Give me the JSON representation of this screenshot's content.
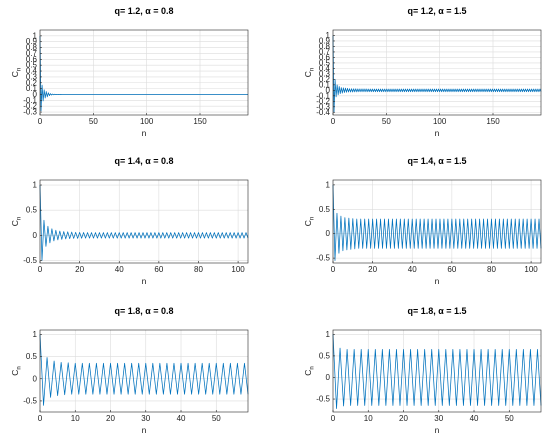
{
  "line_color": "#0072BD",
  "chart_data": [
    {
      "type": "line",
      "title": "q= 1.2, α = 0.8",
      "xlabel": "n",
      "ylabel": "C",
      "ylabel_sub": "n",
      "xlim": [
        0,
        195
      ],
      "ylim": [
        -0.35,
        1.1
      ],
      "xticks": [
        0,
        50,
        100,
        150
      ],
      "xtick_labels": [
        "0",
        "50",
        "100",
        "150"
      ],
      "yticks": [
        -0.3,
        -0.2,
        -0.1,
        0,
        0.1,
        0.2,
        0.3,
        0.4,
        0.5,
        0.6,
        0.7,
        0.8,
        0.9,
        1
      ],
      "ytick_labels": [
        "-0.3",
        "-0.2",
        "-0.1",
        "0",
        "0.1",
        "0.2",
        "0.3",
        "0.4",
        "0.5",
        "0.6",
        "0.7",
        "0.8",
        "0.9",
        "1"
      ],
      "grid": true,
      "series": [
        {
          "x_start": 0,
          "x_end": 195,
          "values": [
            1,
            -0.28,
            0.16,
            -0.11,
            0.08,
            -0.06,
            0.05,
            -0.04,
            0.03,
            -0.02,
            0.015,
            -0.01,
            0.008,
            -0.005,
            0.004,
            -0.003,
            0.002,
            -0.001,
            0.001,
            -0.001,
            0.001,
            -0.001,
            0,
            0,
            0,
            0,
            0,
            0,
            0,
            0,
            0,
            0,
            0,
            0,
            0,
            0,
            0,
            0,
            0,
            0,
            0,
            0,
            0,
            0,
            0,
            0,
            0,
            0,
            0,
            0,
            0,
            0,
            0,
            0,
            0,
            0,
            0,
            0,
            0,
            0,
            0,
            0,
            0,
            0,
            0,
            0,
            0,
            0,
            0,
            0,
            0,
            0,
            0,
            0,
            0,
            0,
            0,
            0,
            0,
            0,
            0,
            0,
            0,
            0,
            0,
            0,
            0,
            0,
            0,
            0,
            0,
            0,
            0,
            0,
            0,
            0,
            0,
            0,
            0,
            0,
            0,
            0,
            0,
            0,
            0,
            0,
            0,
            0,
            0,
            0,
            0,
            0,
            0,
            0,
            0,
            0,
            0,
            0,
            0,
            0,
            0,
            0,
            0,
            0,
            0,
            0,
            0,
            0,
            0,
            0,
            0,
            0,
            0,
            0,
            0,
            0,
            0,
            0,
            0,
            0,
            0,
            0,
            0,
            0,
            0,
            0,
            0,
            0,
            0,
            0,
            0,
            0,
            0,
            0,
            0,
            0,
            0,
            0,
            0,
            0,
            0,
            0,
            0,
            0,
            0,
            0,
            0,
            0,
            0,
            0,
            0,
            0,
            0,
            0,
            0,
            0,
            0,
            0,
            0,
            0,
            0,
            0,
            0,
            0,
            0,
            0,
            0,
            0,
            0,
            0,
            0,
            0,
            0,
            0,
            0,
            0,
            0,
            0,
            0,
            0,
            0
          ]
        }
      ]
    },
    {
      "type": "line",
      "title": "q= 1.2, α = 1.5",
      "xlabel": "n",
      "ylabel": "C",
      "ylabel_sub": "n",
      "xlim": [
        0,
        195
      ],
      "ylim": [
        -0.45,
        1.1
      ],
      "xticks": [
        0,
        50,
        100,
        150
      ],
      "xtick_labels": [
        "0",
        "50",
        "100",
        "150"
      ],
      "yticks": [
        -0.4,
        -0.3,
        -0.2,
        -0.1,
        0,
        0.1,
        0.2,
        0.3,
        0.4,
        0.5,
        0.6,
        0.7,
        0.8,
        0.9,
        1
      ],
      "ytick_labels": [
        "-0.4",
        "-0.3",
        "-0.2",
        "-0.1",
        "0",
        "0.1",
        "0.2",
        "0.3",
        "0.4",
        "0.5",
        "0.6",
        "0.7",
        "0.8",
        "0.9",
        "1"
      ],
      "grid": true,
      "series": [
        {
          "x_start": 0,
          "x_end": 195,
          "values": [
            1,
            -0.4,
            0.2,
            -0.12,
            0.1,
            -0.08,
            0.07,
            -0.06,
            0.05,
            -0.05,
            0.045,
            -0.04,
            0.04,
            -0.035,
            0.035,
            -0.03,
            0.03,
            -0.03,
            0.03,
            -0.03,
            0.028,
            -0.028,
            0.028,
            -0.028,
            0.027,
            -0.027,
            0.027,
            -0.027,
            0.026,
            -0.026,
            0.026,
            -0.026,
            0.026,
            -0.026,
            0.025,
            -0.025,
            0.025,
            -0.025,
            0.025,
            -0.025,
            0.025,
            -0.025,
            0.025,
            -0.025,
            0.025,
            -0.025,
            0.025,
            -0.025,
            0.025,
            -0.025,
            0.025,
            -0.025,
            0.025,
            -0.025,
            0.025,
            -0.025,
            0.025,
            -0.025,
            0.025,
            -0.025,
            0.025,
            -0.025,
            0.025,
            -0.025,
            0.025,
            -0.025,
            0.025,
            -0.025,
            0.025,
            -0.025,
            0.025,
            -0.025,
            0.025,
            -0.025,
            0.025,
            -0.025,
            0.025,
            -0.025,
            0.025,
            -0.025,
            0.025,
            -0.025,
            0.025,
            -0.025,
            0.025,
            -0.025,
            0.025,
            -0.025,
            0.025,
            -0.025,
            0.025,
            -0.025,
            0.025,
            -0.025,
            0.025,
            -0.025,
            0.025,
            -0.025,
            0.025,
            -0.025,
            0.025,
            -0.025,
            0.025,
            -0.025,
            0.025,
            -0.025,
            0.025,
            -0.025,
            0.025,
            -0.025,
            0.025,
            -0.025,
            0.025,
            -0.025,
            0.025,
            -0.025,
            0.025,
            -0.025,
            0.025,
            -0.025,
            0.025,
            -0.025,
            0.025,
            -0.025,
            0.025,
            -0.025,
            0.025,
            -0.025,
            0.025,
            -0.025,
            0.025,
            -0.025,
            0.025,
            -0.025,
            0.025,
            -0.025,
            0.025,
            -0.025,
            0.025,
            -0.025,
            0.025,
            -0.025,
            0.025,
            -0.025,
            0.025,
            -0.025,
            0.025,
            -0.025,
            0.025,
            -0.025,
            0.025,
            -0.025,
            0.025,
            -0.025,
            0.025,
            -0.025,
            0.025,
            -0.025,
            0.025,
            -0.025,
            0.025,
            -0.025,
            0.025,
            -0.025,
            0.025,
            -0.025,
            0.025,
            -0.025,
            0.025,
            -0.025,
            0.025,
            -0.025,
            0.025,
            -0.025,
            0.025,
            -0.025,
            0.025,
            -0.025,
            0.025,
            -0.025,
            0.025,
            -0.025,
            0.025,
            -0.025,
            0.025,
            -0.025,
            0.025,
            -0.025,
            0.025,
            -0.025,
            0.025,
            -0.025,
            0.025,
            -0.025,
            0.025,
            -0.025,
            0.025,
            -0.025,
            0.025,
            -0.025,
            0.025,
            -0.025
          ]
        }
      ]
    },
    {
      "type": "line",
      "title": "q= 1.4, α = 0.8",
      "xlabel": "n",
      "ylabel": "C",
      "ylabel_sub": "n",
      "xlim": [
        0,
        105
      ],
      "ylim": [
        -0.55,
        1.1
      ],
      "xticks": [
        0,
        20,
        40,
        60,
        80,
        100
      ],
      "xtick_labels": [
        "0",
        "20",
        "40",
        "60",
        "80",
        "100"
      ],
      "yticks": [
        -0.5,
        0,
        0.5,
        1
      ],
      "ytick_labels": [
        "-0.5",
        "0",
        "0.5",
        "1"
      ],
      "grid": true,
      "series": [
        {
          "x_start": 0,
          "x_end": 105,
          "values": [
            1,
            -0.5,
            0.3,
            -0.22,
            0.18,
            -0.15,
            0.13,
            -0.11,
            0.1,
            -0.09,
            0.085,
            -0.08,
            0.075,
            -0.07,
            0.07,
            -0.065,
            0.065,
            -0.06,
            0.06,
            -0.06,
            0.058,
            -0.058,
            0.056,
            -0.056,
            0.055,
            -0.055,
            0.055,
            -0.055,
            0.055,
            -0.055,
            0.055,
            -0.055,
            0.055,
            -0.055,
            0.055,
            -0.055,
            0.055,
            -0.055,
            0.055,
            -0.055,
            0.055,
            -0.055,
            0.055,
            -0.055,
            0.055,
            -0.055,
            0.055,
            -0.055,
            0.055,
            -0.055,
            0.055,
            -0.055,
            0.055,
            -0.055,
            0.055,
            -0.055,
            0.055,
            -0.055,
            0.055,
            -0.055,
            0.055,
            -0.055,
            0.055,
            -0.055,
            0.055,
            -0.055,
            0.055,
            -0.055,
            0.055,
            -0.055,
            0.055,
            -0.055,
            0.055,
            -0.055,
            0.055,
            -0.055,
            0.055,
            -0.055,
            0.055,
            -0.055,
            0.055,
            -0.055,
            0.055,
            -0.055,
            0.055,
            -0.055,
            0.055,
            -0.055,
            0.055,
            -0.055,
            0.055,
            -0.055,
            0.055,
            -0.055,
            0.055,
            -0.055,
            0.055,
            -0.055,
            0.055,
            -0.055,
            0.055,
            -0.055,
            0.055,
            -0.055,
            0.055,
            -0.055
          ]
        }
      ]
    },
    {
      "type": "line",
      "title": "q= 1.4, α = 1.5",
      "xlabel": "n",
      "ylabel": "C",
      "ylabel_sub": "n",
      "xlim": [
        0,
        105
      ],
      "ylim": [
        -0.6,
        1.1
      ],
      "xticks": [
        0,
        20,
        40,
        60,
        80,
        100
      ],
      "xtick_labels": [
        "0",
        "20",
        "40",
        "60",
        "80",
        "100"
      ],
      "yticks": [
        -0.5,
        0,
        0.5,
        1
      ],
      "ytick_labels": [
        "-0.5",
        "0",
        "0.5",
        "1"
      ],
      "grid": true,
      "series": [
        {
          "x_start": 0,
          "x_end": 105,
          "values": [
            1,
            -0.55,
            0.42,
            -0.4,
            0.36,
            -0.35,
            0.33,
            -0.33,
            0.32,
            -0.32,
            0.31,
            -0.31,
            0.3,
            -0.3,
            0.3,
            -0.3,
            0.3,
            -0.3,
            0.3,
            -0.3,
            0.3,
            -0.3,
            0.3,
            -0.3,
            0.3,
            -0.3,
            0.3,
            -0.3,
            0.3,
            -0.3,
            0.3,
            -0.3,
            0.3,
            -0.3,
            0.3,
            -0.3,
            0.3,
            -0.3,
            0.3,
            -0.3,
            0.3,
            -0.3,
            0.3,
            -0.3,
            0.3,
            -0.3,
            0.3,
            -0.3,
            0.3,
            -0.3,
            0.3,
            -0.3,
            0.3,
            -0.3,
            0.3,
            -0.3,
            0.3,
            -0.3,
            0.3,
            -0.3,
            0.3,
            -0.3,
            0.3,
            -0.3,
            0.3,
            -0.3,
            0.3,
            -0.3,
            0.3,
            -0.3,
            0.3,
            -0.3,
            0.3,
            -0.3,
            0.3,
            -0.3,
            0.3,
            -0.3,
            0.3,
            -0.3,
            0.3,
            -0.3,
            0.3,
            -0.3,
            0.3,
            -0.3,
            0.3,
            -0.3,
            0.3,
            -0.3,
            0.3,
            -0.3,
            0.3,
            -0.3,
            0.3,
            -0.3,
            0.3,
            -0.3,
            0.3,
            -0.3,
            0.3,
            -0.3,
            0.3,
            -0.3,
            0.3,
            -0.3
          ]
        }
      ]
    },
    {
      "type": "line",
      "title": "q= 1.8, α = 0.8",
      "xlabel": "n",
      "ylabel": "C",
      "ylabel_sub": "n",
      "xlim": [
        0,
        59
      ],
      "ylim": [
        -0.75,
        1.1
      ],
      "xticks": [
        0,
        10,
        20,
        30,
        40,
        50
      ],
      "xtick_labels": [
        "0",
        "10",
        "20",
        "30",
        "40",
        "50"
      ],
      "yticks": [
        -0.5,
        0,
        0.5,
        1
      ],
      "ytick_labels": [
        "-0.5",
        "0",
        "0.5",
        "1"
      ],
      "grid": true,
      "series": [
        {
          "x_start": 0,
          "x_end": 59,
          "values": [
            1,
            -0.6,
            0.48,
            -0.42,
            0.4,
            -0.38,
            0.37,
            -0.36,
            0.36,
            -0.35,
            0.35,
            -0.35,
            0.35,
            -0.35,
            0.35,
            -0.35,
            0.35,
            -0.35,
            0.35,
            -0.35,
            0.35,
            -0.35,
            0.35,
            -0.35,
            0.35,
            -0.35,
            0.35,
            -0.35,
            0.35,
            -0.35,
            0.35,
            -0.35,
            0.35,
            -0.35,
            0.35,
            -0.35,
            0.35,
            -0.35,
            0.35,
            -0.35,
            0.35,
            -0.35,
            0.35,
            -0.35,
            0.35,
            -0.35,
            0.35,
            -0.35,
            0.35,
            -0.35,
            0.35,
            -0.35,
            0.35,
            -0.35,
            0.35,
            -0.35,
            0.35,
            -0.35,
            0.35,
            -0.35
          ]
        }
      ]
    },
    {
      "type": "line",
      "title": "q= 1.8, α = 1.5",
      "xlabel": "n",
      "ylabel": "C",
      "ylabel_sub": "n",
      "xlim": [
        0,
        59
      ],
      "ylim": [
        -0.8,
        1.1
      ],
      "xticks": [
        0,
        10,
        20,
        30,
        40,
        50
      ],
      "xtick_labels": [
        "0",
        "10",
        "20",
        "30",
        "40",
        "50"
      ],
      "yticks": [
        -0.5,
        0,
        0.5,
        1
      ],
      "ytick_labels": [
        "-0.5",
        "0",
        "0.5",
        "1"
      ],
      "grid": true,
      "series": [
        {
          "x_start": 0,
          "x_end": 59,
          "values": [
            1,
            -0.72,
            0.68,
            -0.66,
            0.65,
            -0.65,
            0.65,
            -0.65,
            0.65,
            -0.65,
            0.65,
            -0.65,
            0.65,
            -0.65,
            0.65,
            -0.65,
            0.65,
            -0.65,
            0.65,
            -0.65,
            0.65,
            -0.65,
            0.65,
            -0.65,
            0.65,
            -0.65,
            0.65,
            -0.65,
            0.65,
            -0.65,
            0.65,
            -0.65,
            0.65,
            -0.65,
            0.65,
            -0.65,
            0.65,
            -0.65,
            0.65,
            -0.65,
            0.65,
            -0.65,
            0.65,
            -0.65,
            0.65,
            -0.65,
            0.65,
            -0.65,
            0.65,
            -0.65,
            0.65,
            -0.65,
            0.65,
            -0.65,
            0.65,
            -0.65,
            0.65,
            -0.65,
            0.65,
            -0.65
          ]
        }
      ]
    }
  ]
}
